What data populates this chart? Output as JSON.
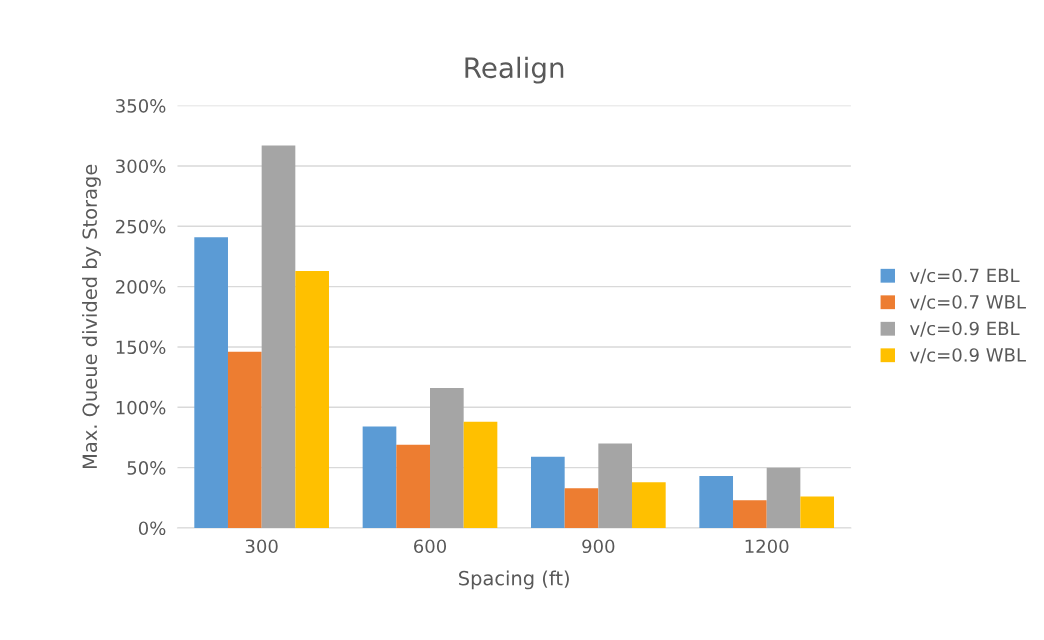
{
  "chart_data": {
    "type": "bar",
    "title": "Realign",
    "xlabel": "Spacing (ft)",
    "ylabel": "Max. Queue divided by Storage",
    "categories": [
      "300",
      "600",
      "900",
      "1200"
    ],
    "series": [
      {
        "name": "v/c=0.7 EBL",
        "color": "#5b9bd5",
        "values": [
          241,
          84,
          59,
          43
        ]
      },
      {
        "name": "v/c=0.7 WBL",
        "color": "#ed7d31",
        "values": [
          146,
          69,
          33,
          23
        ]
      },
      {
        "name": "v/c=0.9 EBL",
        "color": "#a5a5a5",
        "values": [
          317,
          116,
          70,
          50
        ]
      },
      {
        "name": "v/c=0.9 WBL",
        "color": "#ffc000",
        "values": [
          213,
          88,
          38,
          26
        ]
      }
    ],
    "ylim": [
      0,
      350
    ],
    "yticks": [
      {
        "value": 0,
        "label": "0%"
      },
      {
        "value": 50,
        "label": "50%"
      },
      {
        "value": 100,
        "label": "100%"
      },
      {
        "value": 150,
        "label": "150%"
      },
      {
        "value": 200,
        "label": "200%"
      },
      {
        "value": 250,
        "label": "250%"
      },
      {
        "value": 300,
        "label": "300%"
      },
      {
        "value": 350,
        "label": "350%"
      }
    ],
    "grid": "y",
    "legend": "right"
  }
}
